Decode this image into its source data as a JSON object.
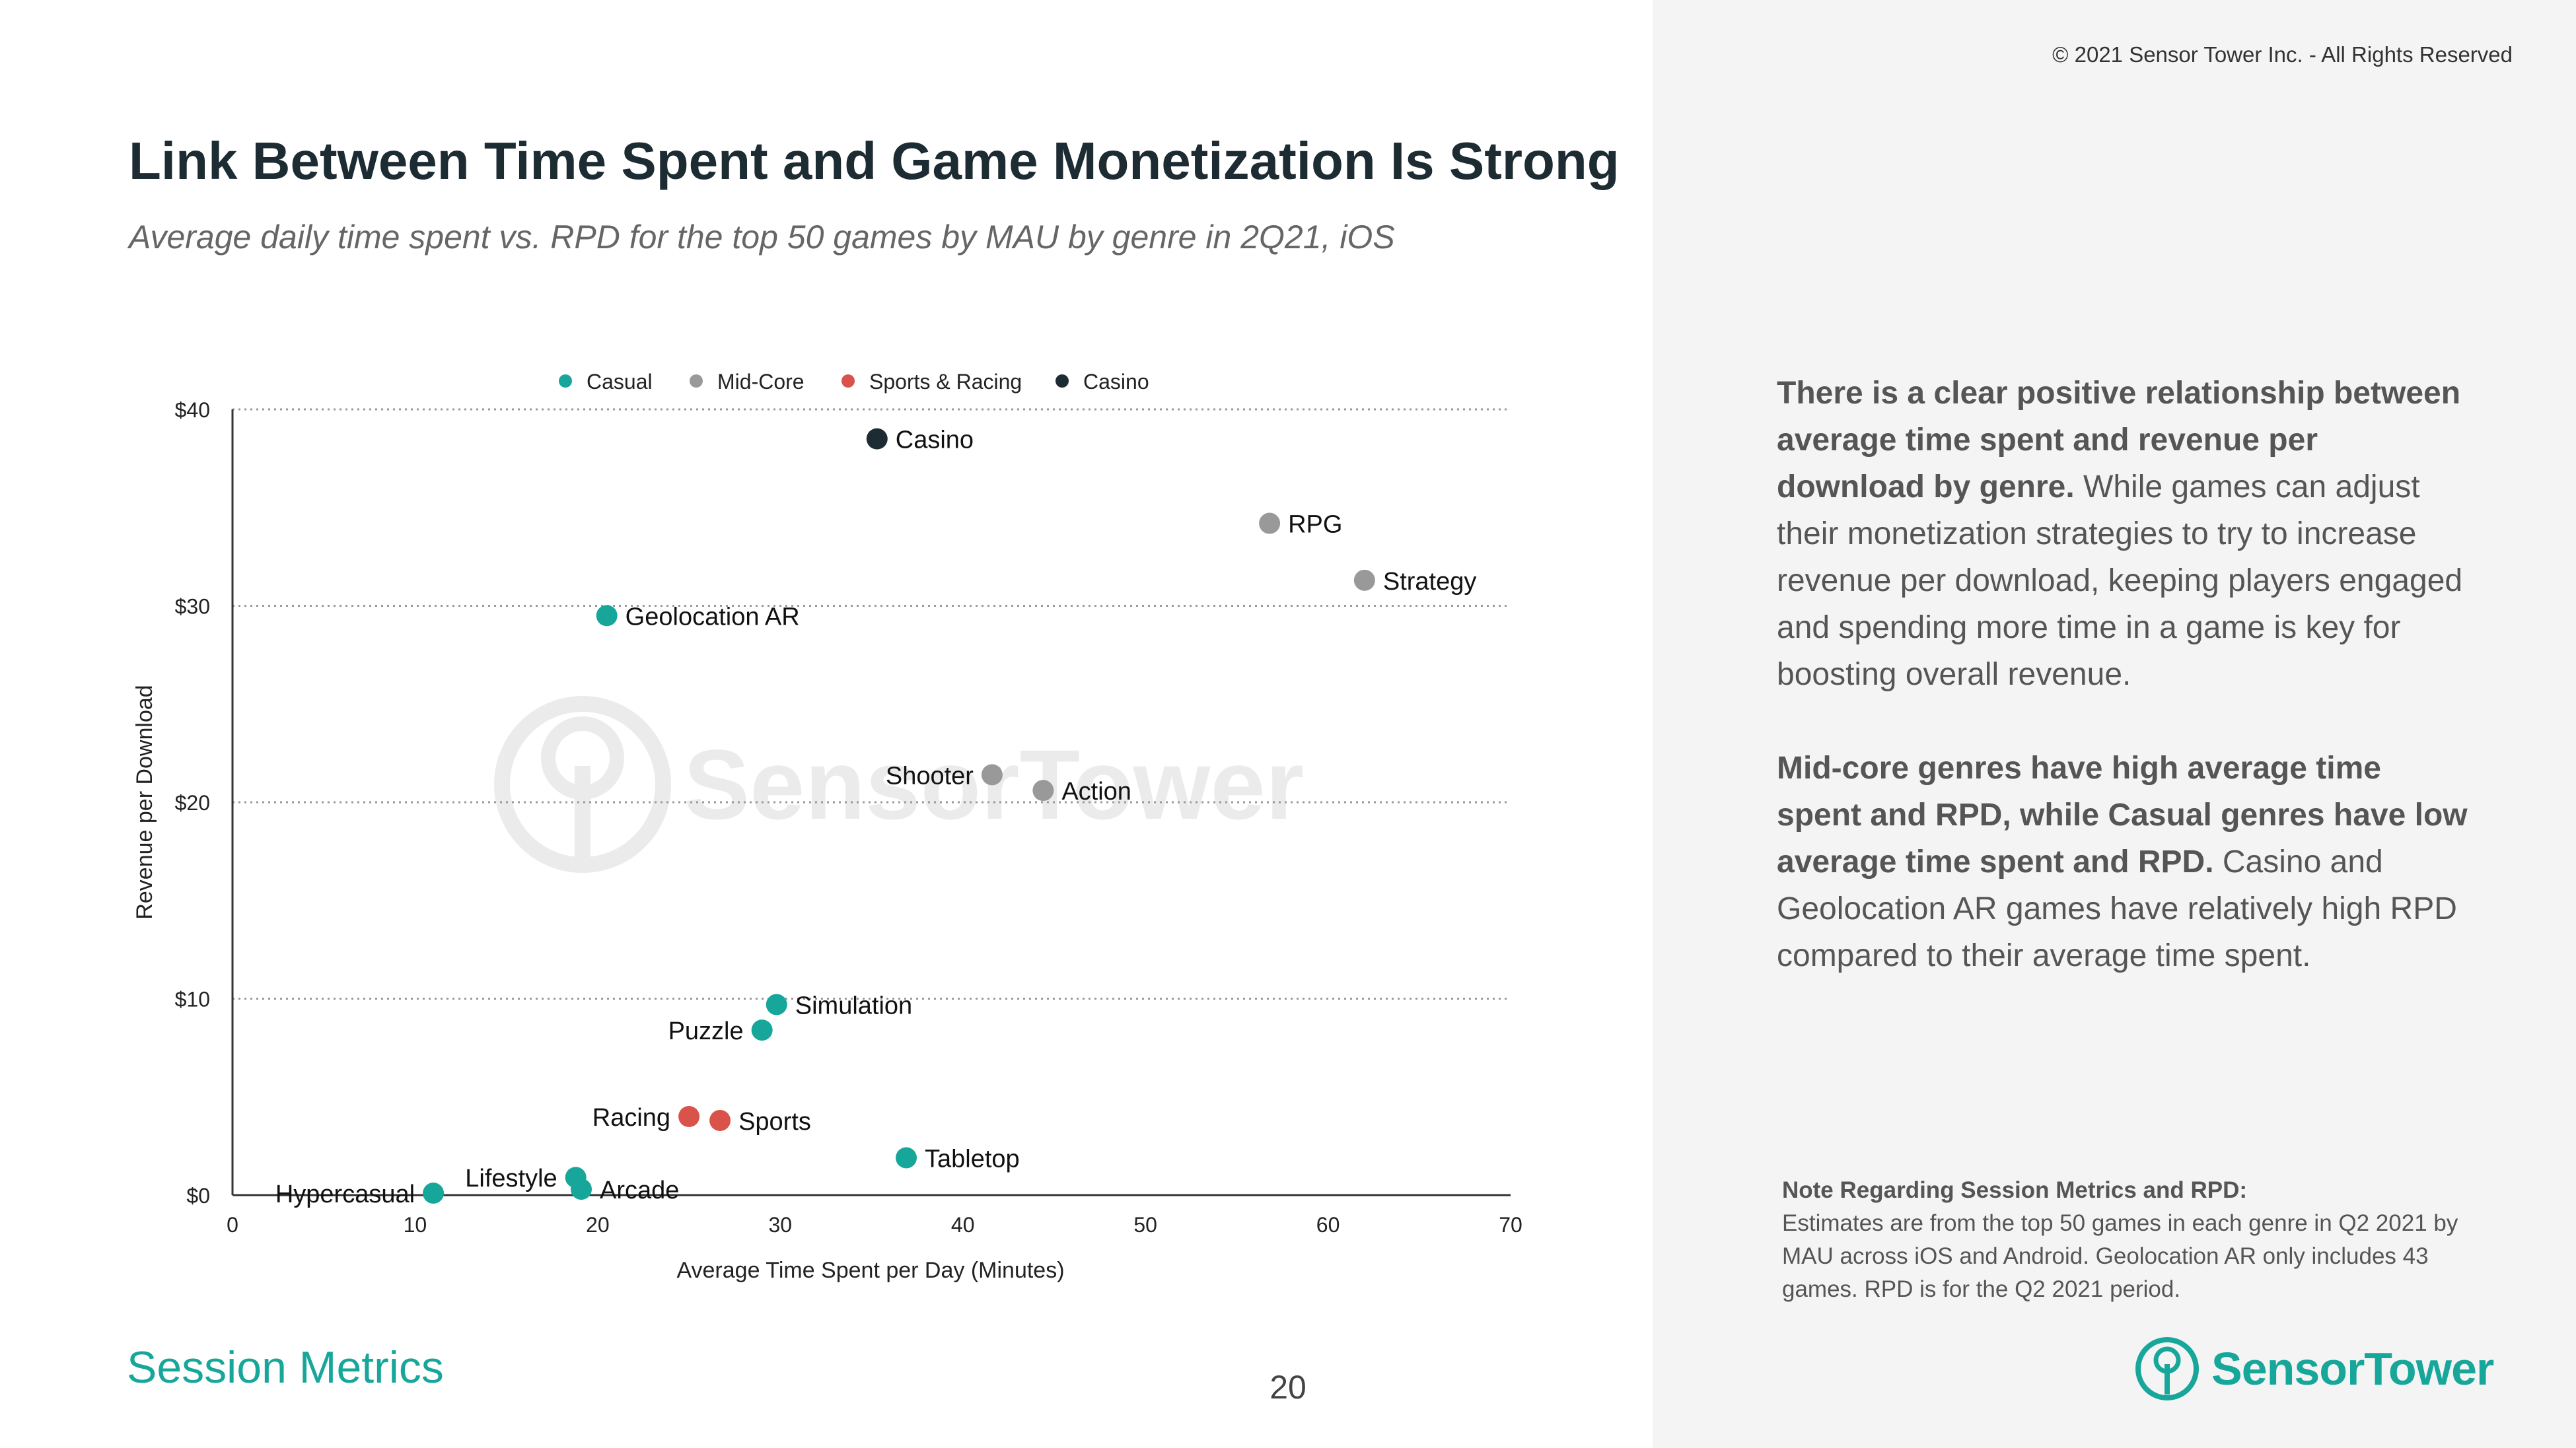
{
  "copyright": "© 2021 Sensor Tower Inc. - All Rights Reserved",
  "title": "Link Between Time Spent and Game Monetization Is Strong",
  "subtitle": "Average daily time spent vs. RPD for the top 50 games by MAU by genre in 2Q21, iOS",
  "chart_data": {
    "type": "scatter",
    "xlabel": "Average Time Spent per Day (Minutes)",
    "ylabel": "Revenue per Download",
    "xlim": [
      0,
      70
    ],
    "ylim": [
      0,
      40
    ],
    "x_ticks": [
      0,
      10,
      20,
      30,
      40,
      50,
      60,
      70
    ],
    "y_ticks": [
      0,
      10,
      20,
      30,
      40
    ],
    "y_tick_labels": [
      "$0",
      "$10",
      "$20",
      "$30",
      "$40"
    ],
    "grid": "horizontal-dotted",
    "legend_position": "top",
    "series": [
      {
        "name": "Casual",
        "color": "#17a79a",
        "points": [
          {
            "label": "Geolocation AR",
            "x": 20.5,
            "y": 29.5,
            "label_side": "right"
          },
          {
            "label": "Simulation",
            "x": 29.8,
            "y": 9.7,
            "label_side": "right"
          },
          {
            "label": "Puzzle",
            "x": 29.0,
            "y": 8.4,
            "label_side": "left"
          },
          {
            "label": "Tabletop",
            "x": 36.9,
            "y": 1.9,
            "label_side": "right"
          },
          {
            "label": "Hypercasual",
            "x": 11.0,
            "y": 0.1,
            "label_side": "left"
          },
          {
            "label": "Lifestyle",
            "x": 18.8,
            "y": 0.9,
            "label_side": "left"
          },
          {
            "label": "Arcade",
            "x": 19.1,
            "y": 0.3,
            "label_side": "right"
          }
        ]
      },
      {
        "name": "Mid-Core",
        "color": "#999999",
        "points": [
          {
            "label": "RPG",
            "x": 56.8,
            "y": 34.2,
            "label_side": "right"
          },
          {
            "label": "Strategy",
            "x": 62.0,
            "y": 31.3,
            "label_side": "right"
          },
          {
            "label": "Shooter",
            "x": 41.6,
            "y": 21.4,
            "label_side": "left"
          },
          {
            "label": "Action",
            "x": 44.4,
            "y": 20.6,
            "label_side": "right"
          }
        ]
      },
      {
        "name": "Sports & Racing",
        "color": "#d9534a",
        "points": [
          {
            "label": "Racing",
            "x": 25.0,
            "y": 4.0,
            "label_side": "left"
          },
          {
            "label": "Sports",
            "x": 26.7,
            "y": 3.8,
            "label_side": "right"
          }
        ]
      },
      {
        "name": "Casino",
        "color": "#1d2b33",
        "points": [
          {
            "label": "Casino",
            "x": 35.3,
            "y": 38.5,
            "label_side": "right"
          }
        ]
      }
    ],
    "watermark": "SensorTower"
  },
  "insight": {
    "p1_bold": "There is a clear positive relationship between average time spent and revenue per download by genre.",
    "p1_rest": " While games can adjust their monetization strategies to try to increase revenue per download, keeping players engaged and spending more time in a game is key for boosting overall revenue.",
    "p2_bold": "Mid-core genres have high average time spent and RPD, while Casual genres have low average time spent and RPD.",
    "p2_rest": " Casino and Geolocation AR games have relatively high RPD compared to their average time spent."
  },
  "note": {
    "title": "Note Regarding Session Metrics and RPD:",
    "body": "Estimates are from the top 50 games in each genre in Q2 2021 by MAU across iOS and Android. Geolocation AR only includes 43 games. RPD is for the Q2 2021 period."
  },
  "footer": {
    "section": "Session Metrics",
    "page": "20",
    "logo_text": "SensorTower"
  },
  "colors": {
    "accent": "#17a79a",
    "title": "#1d2b33",
    "panel": "#f4f4f4"
  }
}
